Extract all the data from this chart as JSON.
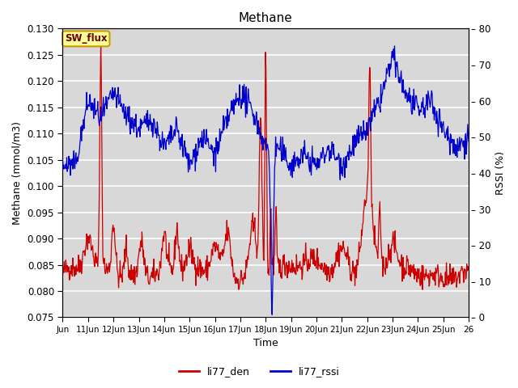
{
  "title": "Methane",
  "ylabel_left": "Methane (mmol/m3)",
  "ylabel_right": "RSSI (%)",
  "xlabel": "Time",
  "ylim_left": [
    0.075,
    0.13
  ],
  "ylim_right": [
    0,
    80
  ],
  "yticks_left": [
    0.075,
    0.08,
    0.085,
    0.09,
    0.095,
    0.1,
    0.105,
    0.11,
    0.115,
    0.12,
    0.125,
    0.13
  ],
  "yticks_right": [
    0,
    10,
    20,
    30,
    40,
    50,
    60,
    70,
    80
  ],
  "xtick_labels": [
    "Jun",
    "11Jun",
    "12Jun",
    "13Jun",
    "14Jun",
    "15Jun",
    "16Jun",
    "17Jun",
    "18Jun",
    "19Jun",
    "20Jun",
    "21Jun",
    "22Jun",
    "23Jun",
    "24Jun",
    "25Jun",
    "26"
  ],
  "color_red": "#cc0000",
  "color_blue": "#0000cc",
  "legend_label_red": "li77_den",
  "legend_label_blue": "li77_rssi",
  "annotation_text": "SW_flux",
  "annotation_bg": "#ffff99",
  "annotation_border": "#cc9900",
  "background_color": "#d8d8d8",
  "grid_color": "#ffffff"
}
